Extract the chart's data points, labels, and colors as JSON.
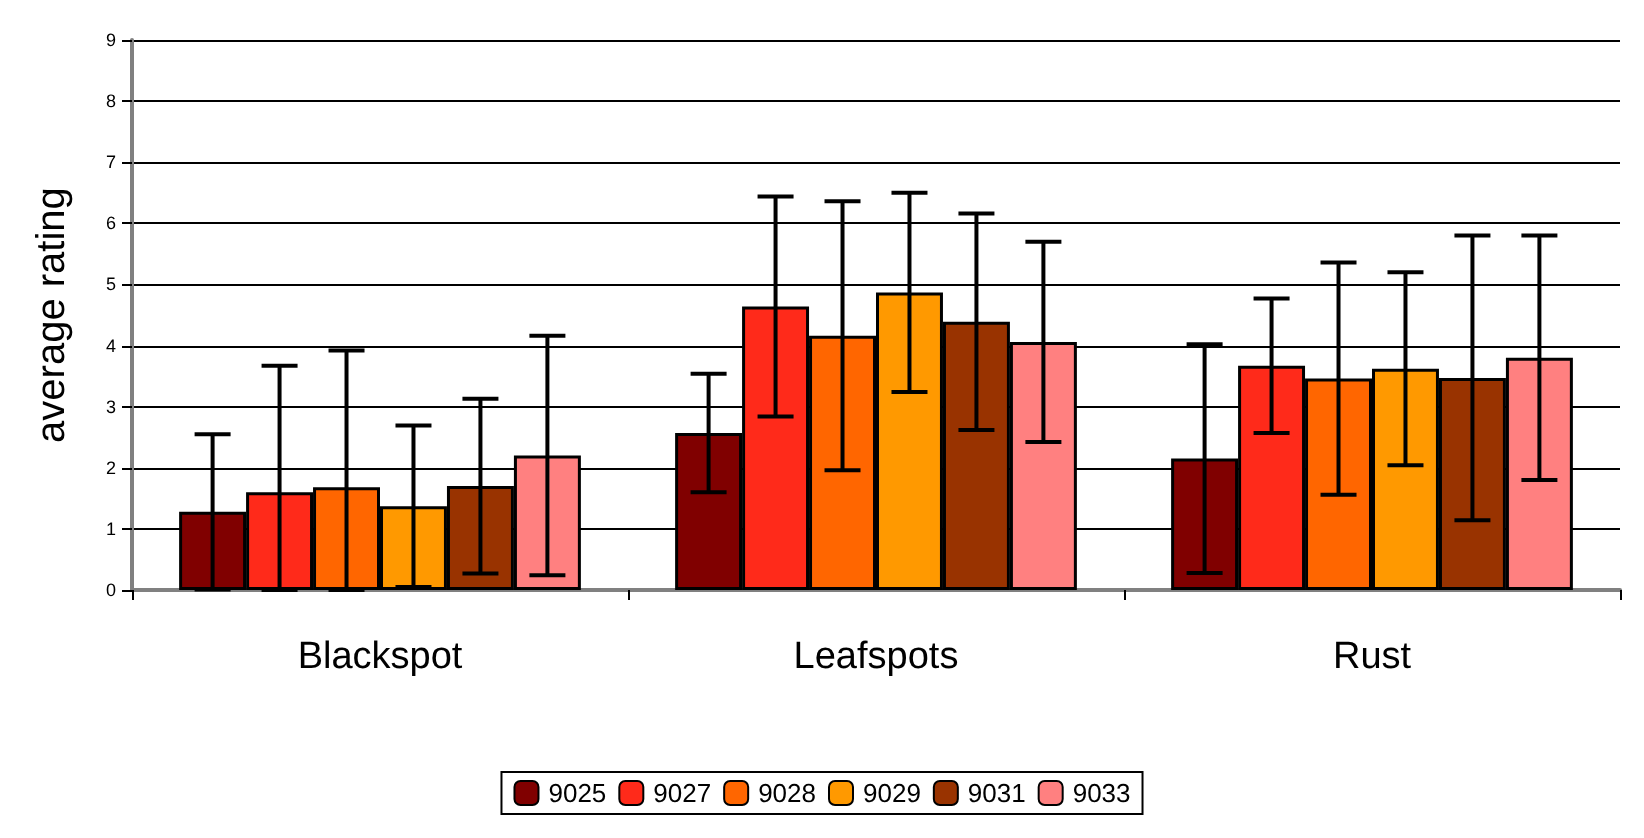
{
  "chart_data": {
    "type": "bar",
    "ylabel": "average rating",
    "categories": [
      "Blackspot",
      "Leafspots",
      "Rust"
    ],
    "series": [
      {
        "name": "9025",
        "color": "#800000",
        "values": [
          1.28,
          2.57,
          2.15
        ],
        "errors": [
          1.27,
          0.97,
          1.87
        ]
      },
      {
        "name": "9027",
        "color": "#ff2a1a",
        "values": [
          1.6,
          4.64,
          3.67
        ],
        "errors": [
          [
            0,
            3.67
          ],
          1.8,
          1.1
        ]
      },
      {
        "name": "9028",
        "color": "#ff6600",
        "values": [
          1.68,
          4.16,
          3.46
        ],
        "errors": [
          [
            0,
            3.92
          ],
          2.2,
          1.9
        ]
      },
      {
        "name": "9029",
        "color": "#ff9900",
        "values": [
          1.37,
          4.87,
          3.62
        ],
        "errors": [
          1.32,
          1.63,
          1.58
        ]
      },
      {
        "name": "9031",
        "color": "#993300",
        "values": [
          1.7,
          4.39,
          3.47
        ],
        "errors": [
          1.43,
          1.77,
          2.33
        ]
      },
      {
        "name": "9033",
        "color": "#ff8080",
        "values": [
          2.2,
          4.06,
          3.8
        ],
        "errors": [
          1.96,
          1.64,
          2.0
        ]
      }
    ],
    "ylim": [
      0,
      9
    ],
    "yticks": [
      0,
      1,
      2,
      3,
      4,
      5,
      6,
      7,
      8,
      9
    ],
    "grid": "y",
    "legend": "bottom"
  }
}
